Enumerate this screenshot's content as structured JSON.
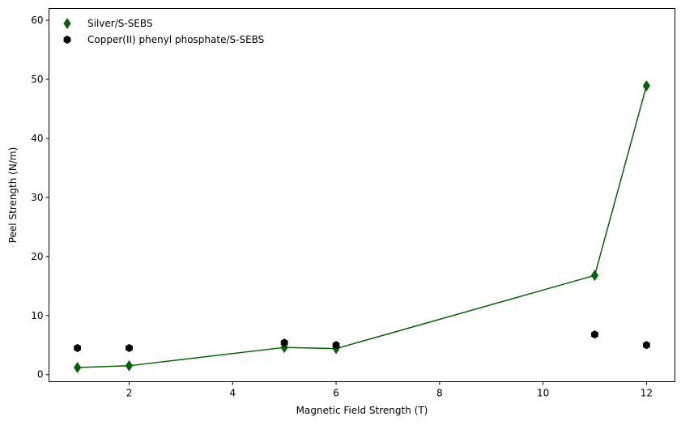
{
  "chart_data": {
    "type": "scatter",
    "title": "",
    "xlabel": "Magnetic Field Strength (T)",
    "ylabel": "Peel Strength (N/m)",
    "xlim": [
      0.45,
      12.55
    ],
    "ylim": [
      -1.2,
      62
    ],
    "xticks": [
      2,
      4,
      6,
      8,
      10,
      12
    ],
    "yticks": [
      0,
      10,
      20,
      30,
      40,
      50,
      60
    ],
    "grid": false,
    "legend_position": "top-left",
    "series": [
      {
        "name": "Silver/S-SEBS",
        "marker": "thin-diamond",
        "color": "#006400",
        "line": true,
        "x": [
          1,
          2,
          5,
          6,
          11,
          12
        ],
        "y": [
          1.2,
          1.5,
          4.6,
          4.4,
          16.8,
          48.9
        ]
      },
      {
        "name": "Copper(II) phenyl phosphate/S-SEBS",
        "marker": "hexagon",
        "color": "#000000",
        "line": false,
        "x": [
          1,
          2,
          5,
          6,
          11,
          12
        ],
        "y": [
          4.5,
          4.5,
          5.4,
          5.0,
          6.8,
          5.0
        ]
      }
    ]
  }
}
